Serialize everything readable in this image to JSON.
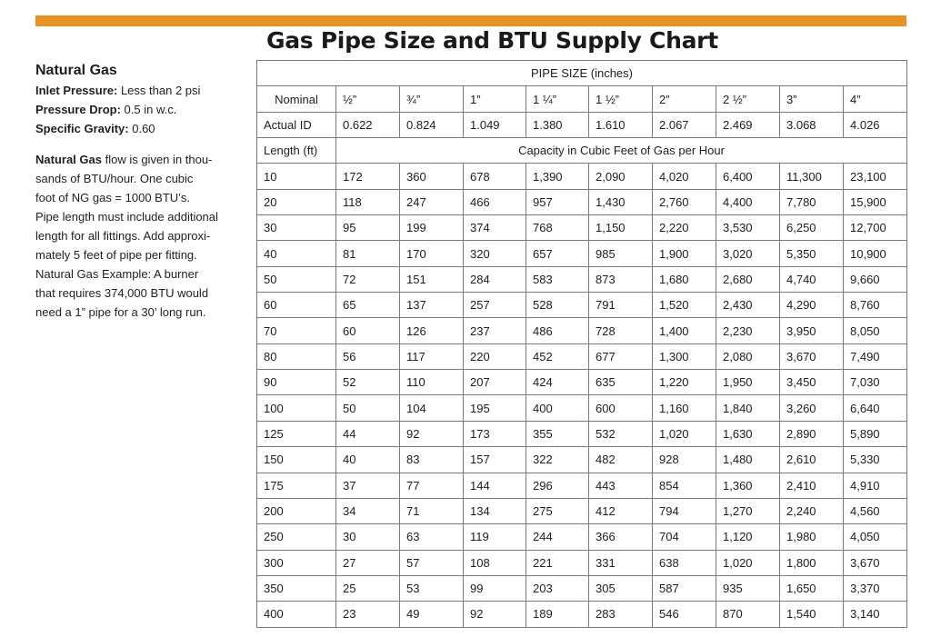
{
  "title": "Gas Pipe Size and BTU Supply Chart",
  "accent_color": "#e8921f",
  "sidebar": {
    "heading": "Natural Gas",
    "specs": [
      {
        "label": "Inlet Pressure:",
        "value": "Less than 2 psi"
      },
      {
        "label": "Pressure Drop:",
        "value": "0.5 in w.c."
      },
      {
        "label": "Specific Gravity:",
        "value": "0.60"
      }
    ],
    "paragraph_bold": "Natural Gas",
    "paragraph_lines": [
      " flow is given in thou-",
      "sands of BTU/hour. One cubic",
      "foot of NG gas = 1000 BTU’s.",
      "Pipe length must include additional",
      "length for all fittings. Add approxi-",
      "mately 5 feet of pipe per fitting.",
      "Natural Gas Example: A burner",
      "that requires 374,000 BTU would",
      "need a 1” pipe for a 30’ long run."
    ]
  },
  "table": {
    "pipe_size_header": "PIPE SIZE (inches)",
    "nominal_label": "Nominal",
    "nominal_sizes": [
      "½”",
      "¾”",
      "1”",
      "1 ¼”",
      "1 ½”",
      "2”",
      "2 ½”",
      "3”",
      "4”"
    ],
    "actual_id_label": "Actual ID",
    "actual_ids": [
      "0.622",
      "0.824",
      "1.049",
      "1.380",
      "1.610",
      "2.067",
      "2.469",
      "3.068",
      "4.026"
    ],
    "length_label": "Length (ft)",
    "capacity_header": "Capacity in Cubic Feet of Gas per Hour",
    "rows": [
      {
        "length": "10",
        "values": [
          "172",
          "360",
          "678",
          "1,390",
          "2,090",
          "4,020",
          "6,400",
          "11,300",
          "23,100"
        ]
      },
      {
        "length": "20",
        "values": [
          "118",
          "247",
          "466",
          "957",
          "1,430",
          "2,760",
          "4,400",
          "7,780",
          "15,900"
        ]
      },
      {
        "length": "30",
        "values": [
          "95",
          "199",
          "374",
          "768",
          "1,150",
          "2,220",
          "3,530",
          "6,250",
          "12,700"
        ]
      },
      {
        "length": "40",
        "values": [
          "81",
          "170",
          "320",
          "657",
          "985",
          "1,900",
          "3,020",
          "5,350",
          "10,900"
        ]
      },
      {
        "length": "50",
        "values": [
          "72",
          "151",
          "284",
          "583",
          "873",
          "1,680",
          "2,680",
          "4,740",
          "9,660"
        ]
      },
      {
        "length": "60",
        "values": [
          "65",
          "137",
          "257",
          "528",
          "791",
          "1,520",
          "2,430",
          "4,290",
          "8,760"
        ]
      },
      {
        "length": "70",
        "values": [
          "60",
          "126",
          "237",
          "486",
          "728",
          "1,400",
          "2,230",
          "3,950",
          "8,050"
        ]
      },
      {
        "length": "80",
        "values": [
          "56",
          "117",
          "220",
          "452",
          "677",
          "1,300",
          "2,080",
          "3,670",
          "7,490"
        ]
      },
      {
        "length": "90",
        "values": [
          "52",
          "110",
          "207",
          "424",
          "635",
          "1,220",
          "1,950",
          "3,450",
          "7,030"
        ]
      },
      {
        "length": "100",
        "values": [
          "50",
          "104",
          "195",
          "400",
          "600",
          "1,160",
          "1,840",
          "3,260",
          "6,640"
        ]
      },
      {
        "length": "125",
        "values": [
          "44",
          "92",
          "173",
          "355",
          "532",
          "1,020",
          "1,630",
          "2,890",
          "5,890"
        ]
      },
      {
        "length": "150",
        "values": [
          "40",
          "83",
          "157",
          "322",
          "482",
          "928",
          "1,480",
          "2,610",
          "5,330"
        ]
      },
      {
        "length": "175",
        "values": [
          "37",
          "77",
          "144",
          "296",
          "443",
          "854",
          "1,360",
          "2,410",
          "4,910"
        ]
      },
      {
        "length": "200",
        "values": [
          "34",
          "71",
          "134",
          "275",
          "412",
          "794",
          "1,270",
          "2,240",
          "4,560"
        ]
      },
      {
        "length": "250",
        "values": [
          "30",
          "63",
          "119",
          "244",
          "366",
          "704",
          "1,120",
          "1,980",
          "4,050"
        ]
      },
      {
        "length": "300",
        "values": [
          "27",
          "57",
          "108",
          "221",
          "331",
          "638",
          "1,020",
          "1,800",
          "3,670"
        ]
      },
      {
        "length": "350",
        "values": [
          "25",
          "53",
          "99",
          "203",
          "305",
          "587",
          "935",
          "1,650",
          "3,370"
        ]
      },
      {
        "length": "400",
        "values": [
          "23",
          "49",
          "92",
          "189",
          "283",
          "546",
          "870",
          "1,540",
          "3,140"
        ]
      }
    ]
  }
}
